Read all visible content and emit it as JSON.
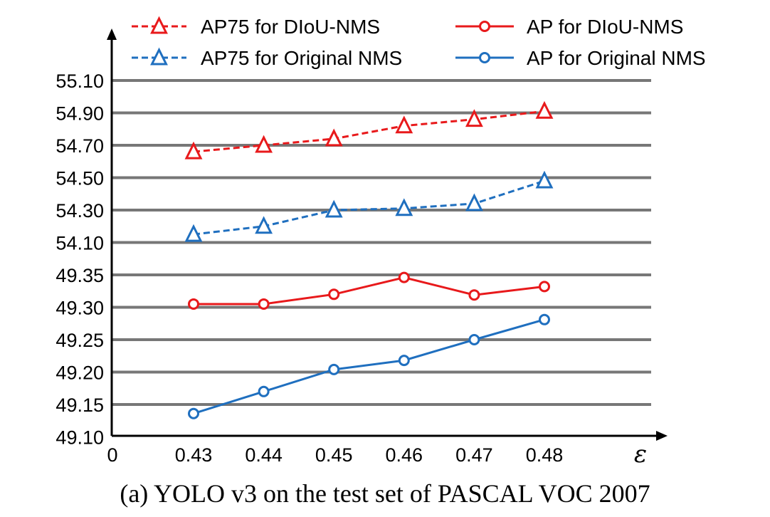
{
  "caption": "(a) YOLO v3 on the test set of PASCAL VOC 2007",
  "chart_data": {
    "type": "line",
    "xlabel": "ε",
    "origin_label": "0",
    "categories": [
      "0.43",
      "0.44",
      "0.45",
      "0.46",
      "0.47",
      "0.48"
    ],
    "y_tick_labels": [
      "49.10",
      "49.15",
      "49.20",
      "49.25",
      "49.30",
      "49.35",
      "54.10",
      "54.30",
      "54.50",
      "54.70",
      "54.90",
      "55.10"
    ],
    "y_axis_note": "broken axis: lower band 49.10–49.35 in steps of 0.05, upper band 54.10–55.10 in steps of 0.20",
    "grid": true,
    "legend_position": "top",
    "series": [
      {
        "name": "AP75 for DIoU-NMS",
        "color": "#e8191b",
        "dash": true,
        "marker": "triangle",
        "values": [
          54.66,
          54.7,
          54.74,
          54.82,
          54.86,
          54.91
        ]
      },
      {
        "name": "AP75 for Original NMS",
        "color": "#1f6fbf",
        "dash": true,
        "marker": "triangle",
        "values": [
          54.15,
          54.2,
          54.3,
          54.31,
          54.34,
          54.48
        ]
      },
      {
        "name": "AP for DIoU-NMS",
        "color": "#e8191b",
        "dash": false,
        "marker": "circle",
        "values": [
          49.305,
          49.305,
          49.32,
          49.346,
          49.319,
          49.332
        ]
      },
      {
        "name": "AP for Original NMS",
        "color": "#1f6fbf",
        "dash": false,
        "marker": "circle",
        "values": [
          49.136,
          49.17,
          49.204,
          49.218,
          49.25,
          49.281
        ]
      }
    ]
  }
}
